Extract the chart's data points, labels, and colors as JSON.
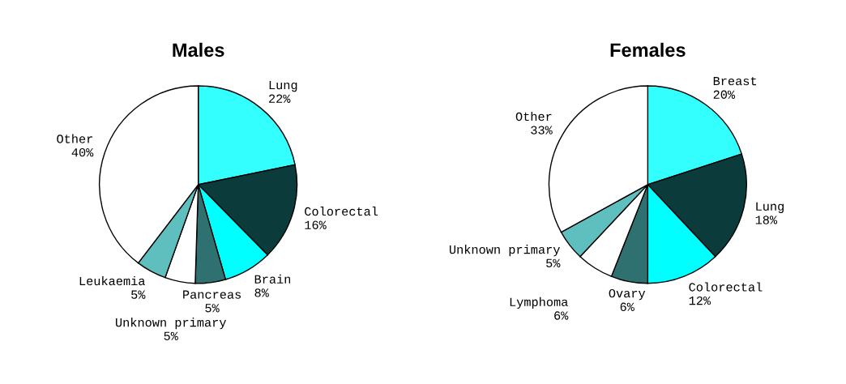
{
  "chart_data": [
    {
      "type": "pie",
      "title": "Males",
      "categories": [
        "Lung",
        "Colorectal",
        "Brain",
        "Pancreas",
        "Unknown primary",
        "Leukaemia",
        "Other"
      ],
      "values": [
        22,
        16,
        8,
        5,
        5,
        5,
        40
      ],
      "value_labels": [
        "22%",
        "16%",
        "8%",
        "5%",
        "5%",
        "5%",
        "40%"
      ],
      "colors": [
        "#33ffff",
        "#0b3b3b",
        "#00ffff",
        "#2f7070",
        "#ffffff",
        "#5fbfbf",
        "#ffffff"
      ]
    },
    {
      "type": "pie",
      "title": "Females",
      "categories": [
        "Breast",
        "Lung",
        "Colorectal",
        "Ovary",
        "Lymphoma",
        "Unknown primary",
        "Other"
      ],
      "values": [
        20,
        18,
        12,
        6,
        6,
        5,
        33
      ],
      "value_labels": [
        "20%",
        "18%",
        "12%",
        "6%",
        "6%",
        "5%",
        "33%"
      ],
      "colors": [
        "#33ffff",
        "#0b3b3b",
        "#00ffff",
        "#2f7070",
        "#ffffff",
        "#5fbfbf",
        "#ffffff"
      ]
    }
  ]
}
